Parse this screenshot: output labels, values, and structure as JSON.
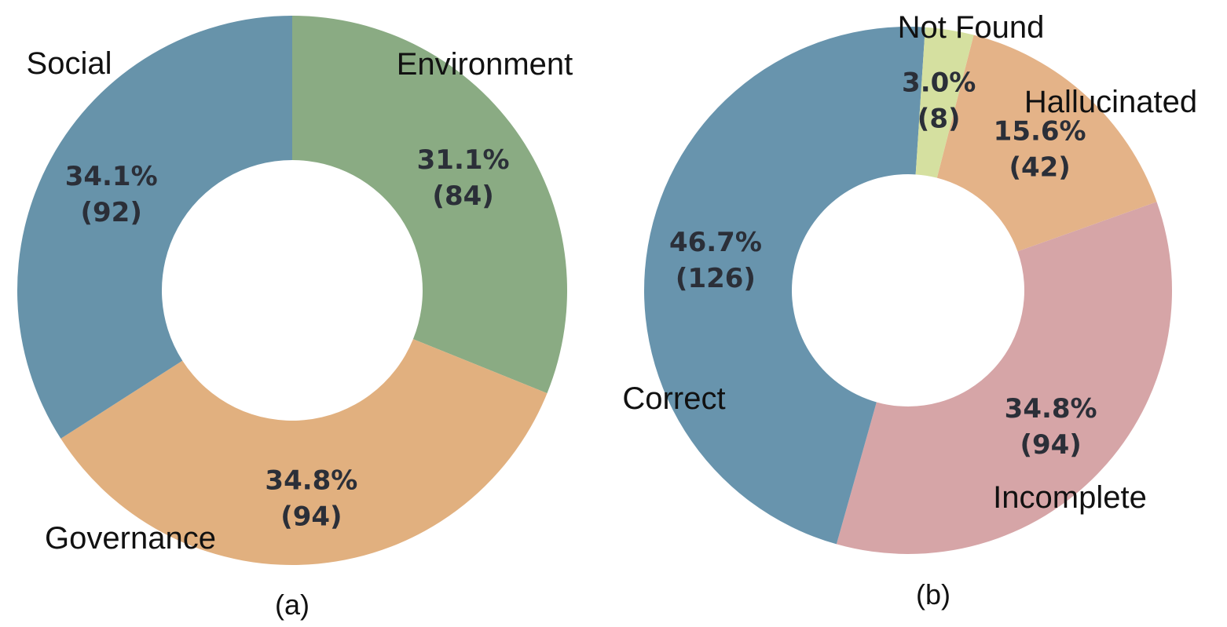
{
  "chart_data": [
    {
      "type": "pie",
      "variant": "donut",
      "panel_label": "(a)",
      "slices": [
        {
          "label": "Environment",
          "value": 84,
          "percent": "31.1%",
          "count_label": "(84)",
          "color": "#8aab83"
        },
        {
          "label": "Governance",
          "value": 94,
          "percent": "34.8%",
          "count_label": "(94)",
          "color": "#e1b07f"
        },
        {
          "label": "Social",
          "value": 92,
          "percent": "34.1%",
          "count_label": "(92)",
          "color": "#6793aa"
        }
      ]
    },
    {
      "type": "pie",
      "variant": "donut",
      "panel_label": "(b)",
      "slices": [
        {
          "label": "Hallucinated",
          "value": 42,
          "percent": "15.6%",
          "count_label": "(42)",
          "color": "#e4b388"
        },
        {
          "label": "Incomplete",
          "value": 94,
          "percent": "34.8%",
          "count_label": "(94)",
          "color": "#d6a5a7"
        },
        {
          "label": "Correct",
          "value": 126,
          "percent": "46.7%",
          "count_label": "(126)",
          "color": "#6894ad"
        },
        {
          "label": "Not Found",
          "value": 8,
          "percent": "3.0%",
          "count_label": "(8)",
          "color": "#d5e0a0"
        }
      ]
    }
  ]
}
